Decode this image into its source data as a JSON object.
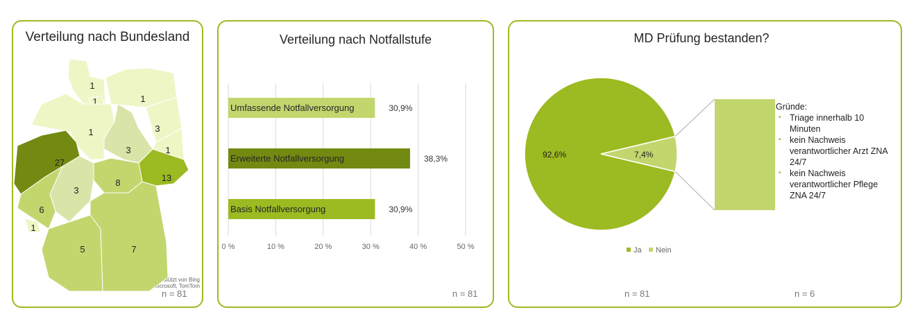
{
  "colors": {
    "border": "#9cba21",
    "dark": "#728a12",
    "mid": "#9cba21",
    "light": "#c2d66e",
    "lighter": "#d9e4a8",
    "pale": "#eff6c6"
  },
  "map_panel": {
    "title": "Verteilung nach Bundesland",
    "n": "n = 81",
    "attribution1": "Unterstützt von Bing",
    "attribution2": "© GeoNames, Microsoft, TomTom"
  },
  "bar_panel": {
    "title": "Verteilung nach Notfallstufe",
    "n": "n = 81"
  },
  "pie_panel": {
    "title": "MD Prüfung bestanden?",
    "n_left": "n = 81",
    "n_right": "n = 6",
    "reasons_title": "Gründe:",
    "reasons": [
      "Triage innerhalb 10 Minuten",
      "kein Nachweis verantwortlicher Arzt ZNA 24/7",
      "kein Nachweis verantwortlicher Pflege ZNA 24/7"
    ]
  },
  "chart_data": [
    {
      "type": "map",
      "title": "Verteilung nach Bundesland",
      "values": [
        1,
        1,
        1,
        1,
        3,
        1,
        3,
        27,
        13,
        8,
        3,
        6,
        1,
        5,
        7
      ]
    },
    {
      "type": "bar",
      "orientation": "horizontal",
      "title": "Verteilung nach Notfallstufe",
      "categories": [
        "Umfassende Notfallversorgung",
        "Erweiterte Notfallversorgung",
        "Basis Notfallversorgung"
      ],
      "values": [
        30.9,
        38.3,
        30.9
      ],
      "labels": [
        "30,9%",
        "38,3%",
        "30,9%"
      ],
      "bar_colors": [
        "#c2d66e",
        "#728a12",
        "#9cba21"
      ],
      "xlim": [
        0,
        50
      ],
      "ticks": [
        "0 %",
        "10 %",
        "20 %",
        "30 %",
        "40 %",
        "50 %"
      ],
      "grid": true
    },
    {
      "type": "pie",
      "title": "MD Prüfung bestanden?",
      "categories": [
        "Ja",
        "Nein"
      ],
      "values": [
        92.6,
        7.4
      ],
      "labels": [
        "92,6%",
        "7,4%"
      ],
      "colors": [
        "#9cba21",
        "#c2d66e"
      ],
      "legend": "bottom"
    }
  ]
}
